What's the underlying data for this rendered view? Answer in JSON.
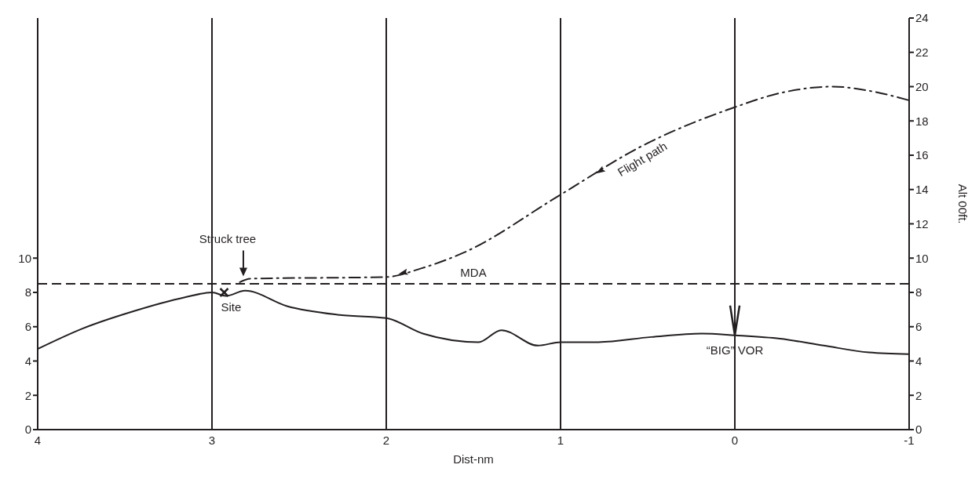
{
  "chart_data": {
    "type": "line",
    "xlabel": "Dist-nm",
    "y2label": "Alt 00ft.",
    "xlim": [
      4,
      -1
    ],
    "xticks": [
      4,
      3,
      2,
      1,
      0,
      -1
    ],
    "ylim": [
      0,
      24
    ],
    "yticks": [
      0,
      2,
      4,
      6,
      8,
      10
    ],
    "y2lim": [
      0,
      24
    ],
    "y2ticks": [
      0,
      2,
      4,
      6,
      8,
      10,
      12,
      14,
      16,
      18,
      20,
      22,
      24
    ],
    "grid": "x",
    "series": [
      {
        "color": "#231f20",
        "line_style": "solid",
        "x": [
          4,
          3.74,
          3.45,
          3.16,
          3.0,
          2.92,
          2.81,
          2.57,
          2.28,
          2.0,
          1.79,
          1.47,
          1.34,
          1.13,
          1.0,
          0.79,
          0.48,
          0.19,
          0,
          -0.26,
          -0.51,
          -0.77,
          -1
        ],
        "values": [
          4.7,
          5.9,
          6.9,
          7.7,
          8.0,
          7.8,
          8.1,
          7.2,
          6.7,
          6.5,
          5.6,
          5.1,
          5.8,
          4.9,
          5.1,
          5.1,
          5.4,
          5.6,
          5.5,
          5.3,
          4.9,
          4.5,
          4.4
        ]
      },
      {
        "name": "Flight path",
        "color": "#231f20",
        "line_style": "dashed",
        "x": [
          2.84,
          2.78,
          2.0,
          1.8,
          1.56,
          1.0,
          0.54,
          0,
          -0.25,
          -0.56,
          -0.8,
          -1
        ],
        "values": [
          8.6,
          8.8,
          8.9,
          9.4,
          10.3,
          13.7,
          16.5,
          18.8,
          19.6,
          20.0,
          19.7,
          19.2
        ]
      },
      {
        "type": "scatter",
        "marker": "cross",
        "color": "#231f20",
        "x": [
          2.93
        ],
        "values": [
          8.0
        ]
      }
    ],
    "ref_lines": [
      {
        "axis": "y",
        "value": 8.5,
        "label": "MDA",
        "color": "#231f20",
        "line_style": "dashed"
      }
    ],
    "annotations": [
      {
        "text": "Struck tree",
        "x": 2.82,
        "y": 8.8
      },
      {
        "text": "Site",
        "x": 2.93,
        "y": 8.0
      },
      {
        "text": "“BIG” VOR",
        "x": 0,
        "y": 5.5
      }
    ]
  }
}
